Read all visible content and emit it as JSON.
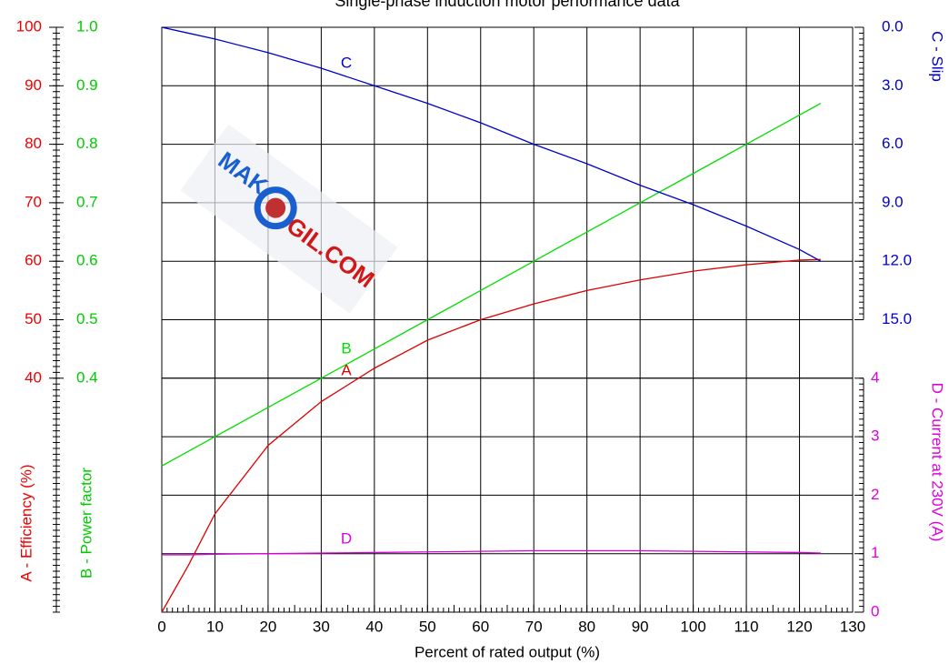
{
  "chart_data": {
    "type": "line",
    "title": "Single-phase induction motor performance data",
    "xlabel": "Percent of rated output (%)",
    "x": [
      0,
      5,
      10,
      20,
      30,
      40,
      50,
      60,
      70,
      80,
      90,
      100,
      110,
      120,
      124
    ],
    "xlim": [
      0,
      130
    ],
    "xticks": [
      0,
      10,
      20,
      30,
      40,
      50,
      60,
      70,
      80,
      90,
      100,
      110,
      120,
      130
    ],
    "grid": true,
    "axes": [
      {
        "id": "y",
        "side": "left",
        "label": "A - Efficiency (%)",
        "color": "#ee0000",
        "lim": [
          0,
          100
        ],
        "ticks": [
          40,
          50,
          60,
          70,
          80,
          90,
          100
        ]
      },
      {
        "id": "y2",
        "side": "left",
        "label": "B - Power factor",
        "color": "#00cc00",
        "lim": [
          0,
          1
        ],
        "ticks": [
          0.4,
          0.5,
          0.6,
          0.7,
          0.8,
          0.9,
          {
            "value": 1,
            "label": "1.0"
          }
        ]
      },
      {
        "id": "y3",
        "side": "right",
        "label": "C - Slip",
        "color": "#0000cc",
        "lim": [
          30,
          0
        ],
        "ticks": [
          {
            "value": 0,
            "label": "0.0"
          },
          {
            "value": 3,
            "label": "3.0"
          },
          {
            "value": 6,
            "label": "6.0"
          },
          {
            "value": 9,
            "label": "9.0"
          },
          {
            "value": 12,
            "label": "12.0"
          },
          {
            "value": 15,
            "label": "15.0"
          }
        ]
      },
      {
        "id": "y4",
        "side": "right",
        "label": "D - Current at  230V (A)",
        "color": "#dd00dd",
        "lim": [
          0,
          10
        ],
        "ticks": [
          0,
          1,
          2,
          3,
          4
        ]
      }
    ],
    "series": [
      {
        "name": "A",
        "axis": "y",
        "color": "#dd0000",
        "values": [
          0,
          8,
          16.8,
          28.5,
          36,
          41.7,
          46.5,
          50,
          52.7,
          55,
          56.8,
          58.3,
          59.4,
          60.2,
          60.3
        ]
      },
      {
        "name": "B",
        "axis": "y2",
        "color": "#00dd00",
        "values": [
          0.25,
          0.275,
          0.3,
          0.35,
          0.4,
          0.45,
          0.5,
          0.55,
          0.6,
          0.65,
          0.7,
          0.75,
          0.8,
          0.85,
          0.87
        ]
      },
      {
        "name": "C",
        "axis": "y3",
        "color": "#0000cc",
        "values": [
          0,
          0.3,
          0.6,
          1.3,
          2.1,
          3.0,
          3.9,
          4.9,
          6.0,
          7.0,
          8.1,
          9.1,
          10.2,
          11.4,
          12.0
        ]
      },
      {
        "name": "D",
        "axis": "y4",
        "color": "#dd00dd",
        "values": [
          0.98,
          0.98,
          0.99,
          1.0,
          1.01,
          1.02,
          1.03,
          1.04,
          1.05,
          1.05,
          1.05,
          1.04,
          1.03,
          1.02,
          1.01
        ]
      }
    ],
    "watermark": {
      "left": "MAK",
      "right": "GIL.COM"
    }
  }
}
